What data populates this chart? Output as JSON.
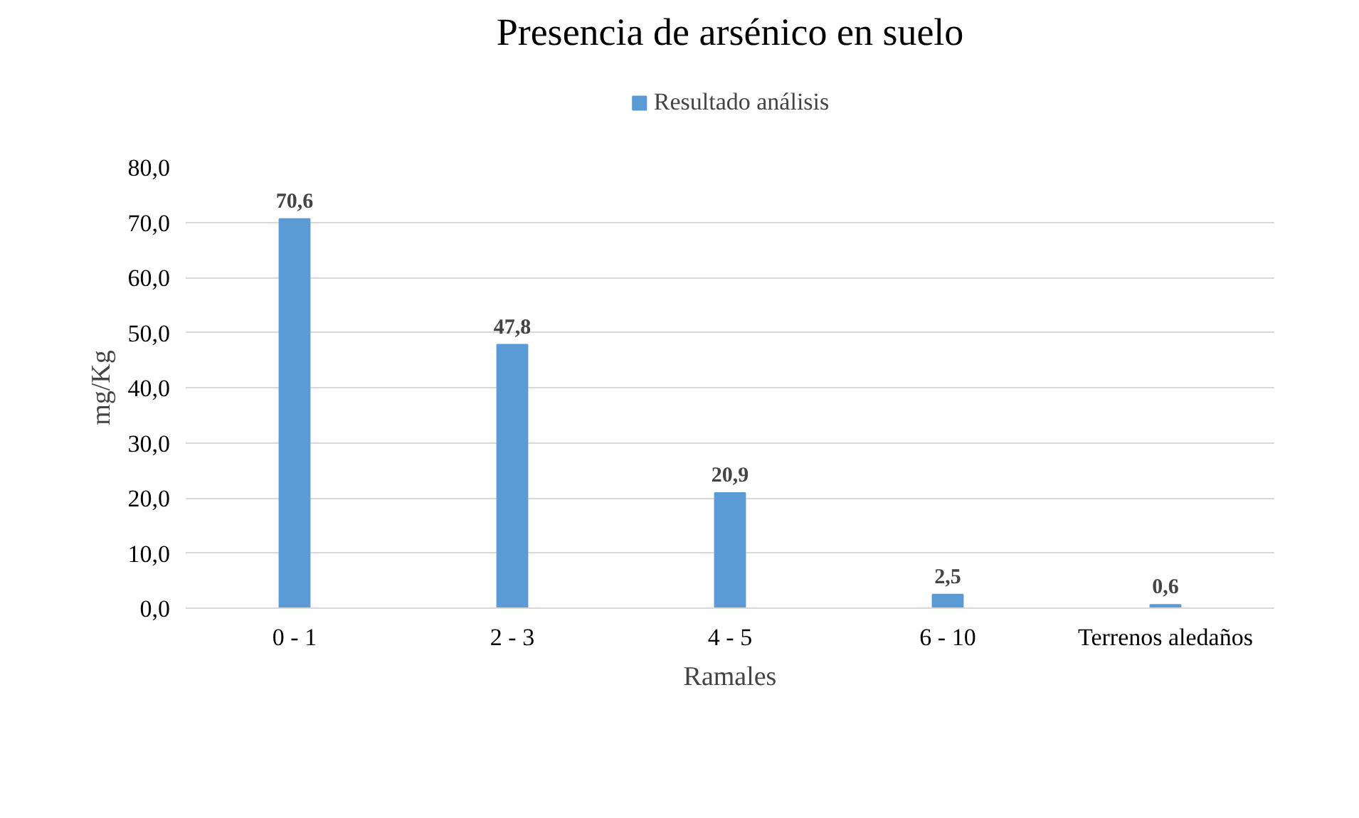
{
  "chart_data": {
    "type": "bar",
    "title": "Presencia de arsénico en suelo",
    "xlabel": "Ramales",
    "ylabel": "mg/Kg",
    "categories": [
      "0 - 1",
      "2 - 3",
      "4 - 5",
      "6 - 10",
      "Terrenos aledaños"
    ],
    "series": [
      {
        "name": "Resultado análisis",
        "color": "#5b9bd5",
        "values": [
          70.6,
          47.8,
          20.9,
          2.5,
          0.6
        ],
        "value_labels": [
          "70,6",
          "47,8",
          "20,9",
          "2,5",
          "0,6"
        ]
      }
    ],
    "ylim": [
      0,
      80
    ],
    "yticks": [
      {
        "value": 0,
        "label": "0,0"
      },
      {
        "value": 10,
        "label": "10,0"
      },
      {
        "value": 20,
        "label": "20,0"
      },
      {
        "value": 30,
        "label": "30,0"
      },
      {
        "value": 40,
        "label": "40,0"
      },
      {
        "value": 50,
        "label": "50,0"
      },
      {
        "value": 60,
        "label": "60,0"
      },
      {
        "value": 70,
        "label": "70,0"
      },
      {
        "value": 80,
        "label": "80,0"
      }
    ],
    "grid": "y",
    "legend": "top"
  }
}
